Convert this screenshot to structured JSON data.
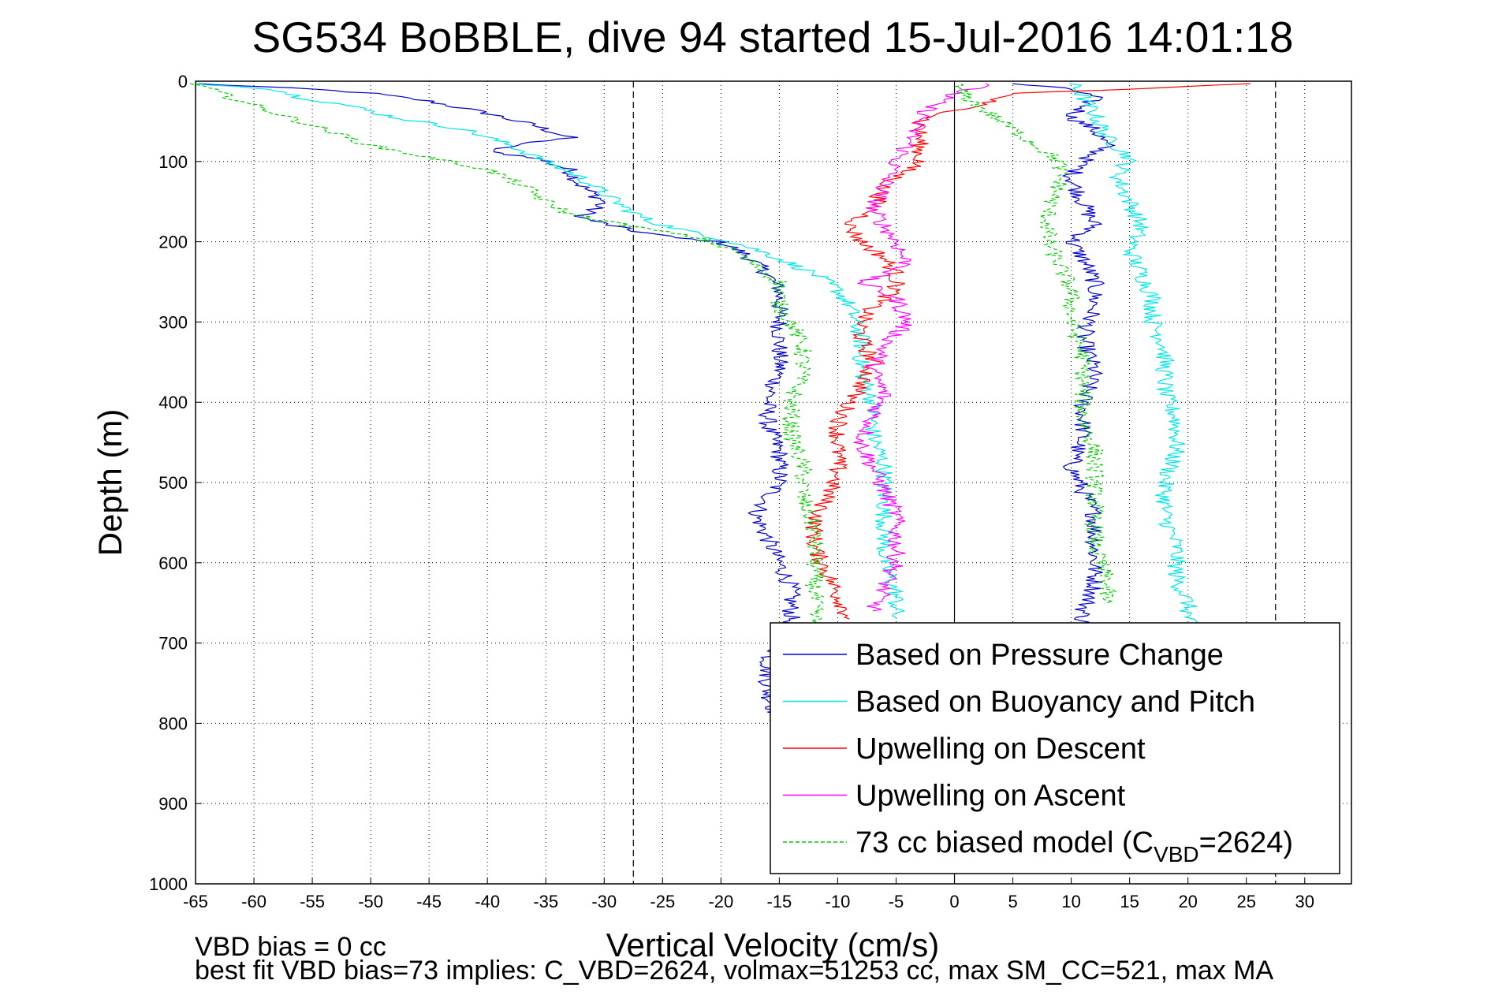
{
  "chart_data": {
    "type": "line",
    "title": "SG534 BoBBLE, dive 94 started 15-Jul-2016 14:01:18",
    "xlabel": "Vertical Velocity (cm/s)",
    "ylabel": "Depth (m)",
    "xlim": [
      -65,
      34
    ],
    "ylim": [
      0,
      1000
    ],
    "y_reversed": true,
    "grid": true,
    "xticks": [
      -65,
      -60,
      -55,
      -50,
      -45,
      -40,
      -35,
      -30,
      -25,
      -20,
      -15,
      -10,
      -5,
      0,
      5,
      10,
      15,
      20,
      25,
      30
    ],
    "yticks": [
      0,
      100,
      200,
      300,
      400,
      500,
      600,
      700,
      800,
      900,
      1000
    ],
    "vlines": [
      {
        "x": -27.5,
        "style": "dashed",
        "color": "#000000"
      },
      {
        "x": 0,
        "style": "solid",
        "color": "#000000"
      },
      {
        "x": 27.5,
        "style": "dashed",
        "color": "#000000"
      }
    ],
    "legend_position": "bottom-right",
    "series": [
      {
        "name": "Based on Pressure Change",
        "color": "#0000cc",
        "style": "solid",
        "descent": [
          [
            -65,
            3
          ],
          [
            -55,
            10
          ],
          [
            -50,
            15
          ],
          [
            -45,
            25
          ],
          [
            -40,
            40
          ],
          [
            -36,
            55
          ],
          [
            -33,
            70
          ],
          [
            -38,
            80
          ],
          [
            -40,
            88
          ],
          [
            -36,
            95
          ],
          [
            -33,
            110
          ],
          [
            -32,
            130
          ],
          [
            -30,
            150
          ],
          [
            -32,
            170
          ],
          [
            -28,
            185
          ],
          [
            -24,
            195
          ],
          [
            -20,
            200
          ],
          [
            -18,
            215
          ],
          [
            -16,
            240
          ],
          [
            -15,
            260
          ],
          [
            -15,
            280
          ],
          [
            -15,
            300
          ],
          [
            -15,
            330
          ],
          [
            -15,
            360
          ],
          [
            -16,
            400
          ],
          [
            -16,
            430
          ],
          [
            -15,
            460
          ],
          [
            -15,
            500
          ],
          [
            -17,
            540
          ],
          [
            -16,
            570
          ],
          [
            -15,
            600
          ],
          [
            -14,
            630
          ],
          [
            -14,
            660
          ],
          [
            -14,
            690
          ],
          [
            -16,
            720
          ],
          [
            -16,
            760
          ],
          [
            -15,
            800
          ],
          [
            -15,
            850
          ]
        ],
        "ascent": [
          [
            5,
            3
          ],
          [
            10,
            10
          ],
          [
            12,
            20
          ],
          [
            10,
            45
          ],
          [
            12,
            60
          ],
          [
            13,
            80
          ],
          [
            11,
            100
          ],
          [
            10,
            120
          ],
          [
            11,
            150
          ],
          [
            12,
            180
          ],
          [
            10,
            200
          ],
          [
            11,
            220
          ],
          [
            12,
            250
          ],
          [
            12,
            280
          ],
          [
            11,
            320
          ],
          [
            12,
            360
          ],
          [
            11,
            400
          ],
          [
            11,
            440
          ],
          [
            10,
            480
          ],
          [
            11,
            510
          ],
          [
            12,
            540
          ],
          [
            12,
            570
          ],
          [
            12,
            600
          ],
          [
            12,
            630
          ],
          [
            11,
            660
          ],
          [
            11,
            690
          ]
        ]
      },
      {
        "name": "Based on Buoyancy and Pitch",
        "color": "#00e5e5",
        "style": "solid",
        "descent": [
          [
            -65,
            3
          ],
          [
            -58,
            10
          ],
          [
            -56,
            20
          ],
          [
            -52,
            30
          ],
          [
            -48,
            45
          ],
          [
            -42,
            60
          ],
          [
            -38,
            80
          ],
          [
            -35,
            100
          ],
          [
            -32,
            120
          ],
          [
            -30,
            140
          ],
          [
            -28,
            160
          ],
          [
            -26,
            175
          ],
          [
            -22,
            190
          ],
          [
            -19,
            200
          ],
          [
            -16,
            215
          ],
          [
            -12,
            240
          ],
          [
            -10,
            260
          ],
          [
            -9,
            280
          ],
          [
            -8,
            320
          ],
          [
            -8,
            360
          ],
          [
            -7,
            400
          ],
          [
            -7,
            440
          ],
          [
            -6,
            480
          ],
          [
            -6,
            520
          ],
          [
            -6,
            560
          ],
          [
            -6,
            600
          ],
          [
            -5,
            640
          ],
          [
            -5,
            670
          ]
        ],
        "ascent": [
          [
            10,
            3
          ],
          [
            11,
            20
          ],
          [
            12,
            40
          ],
          [
            13,
            70
          ],
          [
            15,
            95
          ],
          [
            14,
            120
          ],
          [
            15,
            150
          ],
          [
            16,
            180
          ],
          [
            15,
            210
          ],
          [
            16,
            240
          ],
          [
            17,
            270
          ],
          [
            17,
            300
          ],
          [
            18,
            330
          ],
          [
            18,
            360
          ],
          [
            18,
            390
          ],
          [
            19,
            420
          ],
          [
            19,
            460
          ],
          [
            18,
            500
          ],
          [
            18,
            540
          ],
          [
            19,
            580
          ],
          [
            19,
            620
          ],
          [
            20,
            650
          ],
          [
            20,
            680
          ]
        ]
      },
      {
        "name": "Upwelling on Descent",
        "color": "#ff0000",
        "style": "solid",
        "descent": [
          [
            25,
            3
          ],
          [
            15,
            10
          ],
          [
            5,
            15
          ],
          [
            3,
            25
          ],
          [
            -3,
            50
          ],
          [
            -3,
            80
          ],
          [
            -3,
            100
          ],
          [
            -6,
            130
          ],
          [
            -7,
            160
          ],
          [
            -9,
            180
          ],
          [
            -8,
            200
          ],
          [
            -6,
            220
          ],
          [
            -5,
            240
          ],
          [
            -5,
            260
          ],
          [
            -7,
            280
          ],
          [
            -8,
            300
          ],
          [
            -8,
            320
          ],
          [
            -7,
            350
          ],
          [
            -8,
            380
          ],
          [
            -9,
            400
          ],
          [
            -10,
            430
          ],
          [
            -10,
            460
          ],
          [
            -10,
            490
          ],
          [
            -11,
            520
          ],
          [
            -12,
            550
          ],
          [
            -12,
            580
          ],
          [
            -11,
            610
          ],
          [
            -10,
            640
          ],
          [
            -9,
            670
          ]
        ]
      },
      {
        "name": "Upwelling on Ascent",
        "color": "#ff00ff",
        "style": "solid",
        "ascent": [
          [
            3,
            3
          ],
          [
            0,
            15
          ],
          [
            -2,
            30
          ],
          [
            -3,
            50
          ],
          [
            -4,
            80
          ],
          [
            -5,
            100
          ],
          [
            -6,
            130
          ],
          [
            -7,
            160
          ],
          [
            -6,
            180
          ],
          [
            -5,
            200
          ],
          [
            -4,
            230
          ],
          [
            -8,
            250
          ],
          [
            -5,
            270
          ],
          [
            -4,
            300
          ],
          [
            -6,
            330
          ],
          [
            -7,
            360
          ],
          [
            -6,
            390
          ],
          [
            -7,
            420
          ],
          [
            -8,
            450
          ],
          [
            -7,
            480
          ],
          [
            -6,
            510
          ],
          [
            -5,
            540
          ],
          [
            -5,
            570
          ],
          [
            -5,
            600
          ],
          [
            -6,
            630
          ],
          [
            -7,
            660
          ]
        ]
      },
      {
        "name": "73 cc biased model (C_VBD=2624)",
        "label_main": "73 cc biased model (C",
        "label_sub": "VBD",
        "label_end": "=2624)",
        "color": "#00cc00",
        "style": "dashed",
        "descent": [
          [
            -65,
            3
          ],
          [
            -62,
            20
          ],
          [
            -58,
            40
          ],
          [
            -54,
            60
          ],
          [
            -50,
            80
          ],
          [
            -45,
            95
          ],
          [
            -40,
            110
          ],
          [
            -37,
            130
          ],
          [
            -35,
            150
          ],
          [
            -33,
            165
          ],
          [
            -28,
            180
          ],
          [
            -22,
            195
          ],
          [
            -19,
            210
          ],
          [
            -17,
            230
          ],
          [
            -15,
            250
          ],
          [
            -15,
            280
          ],
          [
            -14,
            300
          ],
          [
            -13,
            330
          ],
          [
            -13,
            360
          ],
          [
            -14,
            400
          ],
          [
            -14,
            440
          ],
          [
            -13,
            480
          ],
          [
            -13,
            520
          ],
          [
            -12,
            560
          ],
          [
            -12,
            600
          ],
          [
            -12,
            640
          ],
          [
            -12,
            680
          ]
        ],
        "ascent": [
          [
            0,
            3
          ],
          [
            1,
            20
          ],
          [
            3,
            40
          ],
          [
            6,
            70
          ],
          [
            8,
            90
          ],
          [
            9,
            100
          ],
          [
            9,
            130
          ],
          [
            8,
            160
          ],
          [
            8,
            200
          ],
          [
            9,
            230
          ],
          [
            10,
            260
          ],
          [
            10,
            300
          ],
          [
            11,
            340
          ],
          [
            11,
            380
          ],
          [
            11,
            420
          ],
          [
            12,
            460
          ],
          [
            12,
            500
          ],
          [
            12,
            540
          ],
          [
            12,
            580
          ],
          [
            13,
            620
          ],
          [
            13,
            650
          ]
        ]
      }
    ],
    "notes": [
      "VBD bias = 0 cc",
      "best fit VBD bias=73 implies: C_VBD=2624, volmax=51253 cc, max SM_CC=521, max MA"
    ]
  }
}
